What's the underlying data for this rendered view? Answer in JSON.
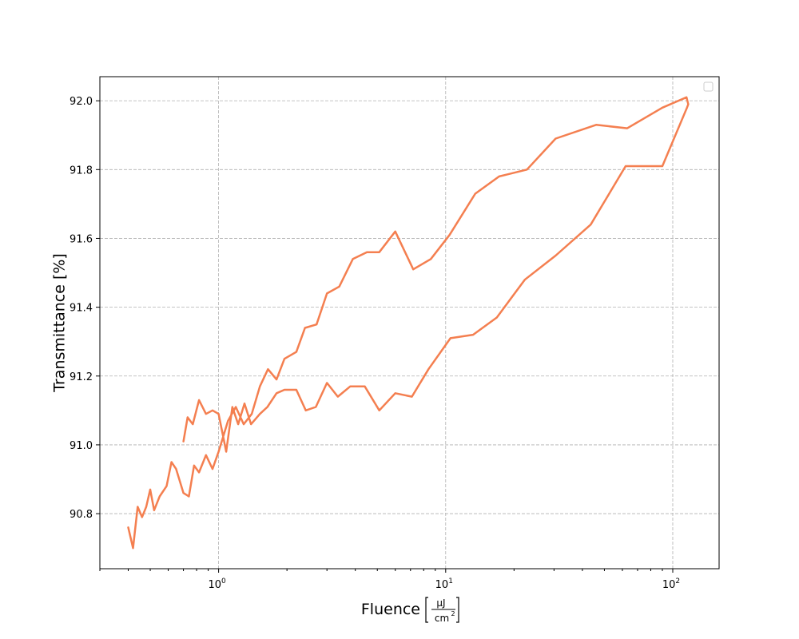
{
  "chart_data": {
    "type": "line",
    "title": "",
    "xlabel": "Fluence",
    "xlabel_unit_numerator": "μJ",
    "xlabel_unit_denominator": "cm",
    "xlabel_unit_exponent": "2",
    "ylabel": "Transmittance [%]",
    "xscale": "log",
    "xlim": [
      0.3,
      160
    ],
    "ylim": [
      90.64,
      92.07
    ],
    "grid": true,
    "legend": "top-right (empty)",
    "line_color": "#f47f50",
    "xticks": [
      {
        "value": 1,
        "base": "10",
        "exp": "0"
      },
      {
        "value": 10,
        "base": "10",
        "exp": "1"
      },
      {
        "value": 100,
        "base": "10",
        "exp": "2"
      }
    ],
    "yticks": [
      {
        "value": 90.8,
        "label": "90.8"
      },
      {
        "value": 91.0,
        "label": "91.0"
      },
      {
        "value": 91.2,
        "label": "91.2"
      },
      {
        "value": 91.4,
        "label": "91.4"
      },
      {
        "value": 91.6,
        "label": "91.6"
      },
      {
        "value": 91.8,
        "label": "91.8"
      },
      {
        "value": 92.0,
        "label": "92.0"
      }
    ],
    "series": [
      {
        "x": [
          0.4,
          0.42,
          0.44,
          0.46,
          0.48,
          0.5,
          0.52,
          0.55,
          0.59,
          0.62,
          0.65,
          0.7,
          0.74,
          0.78,
          0.82,
          0.88,
          0.94,
          1.0,
          1.1,
          1.19,
          1.29,
          1.4,
          1.52,
          1.65,
          1.8,
          1.95,
          2.2,
          2.4,
          2.7,
          3.0,
          3.4,
          3.9,
          4.5,
          5.1,
          6.0,
          7.2,
          8.6,
          10.4,
          13.5,
          17.2,
          22.8,
          30.5,
          46.0,
          63.0,
          90.0,
          115.0,
          117.0,
          115.5,
          90.0,
          62.0,
          43.5,
          30.5,
          22.3,
          16.8,
          13.2,
          10.5,
          8.4,
          7.1,
          6.0,
          5.1,
          4.4,
          3.8,
          3.35,
          3.0,
          2.68,
          2.42,
          2.2,
          1.95,
          1.8,
          1.64,
          1.52,
          1.39,
          1.3,
          1.22,
          1.15,
          1.08,
          1.0,
          0.94,
          0.88,
          0.82,
          0.77,
          0.73,
          0.7
        ],
        "y": [
          90.76,
          90.7,
          90.82,
          90.79,
          90.82,
          90.87,
          90.81,
          90.85,
          90.88,
          90.95,
          90.93,
          90.86,
          90.85,
          90.94,
          90.92,
          90.97,
          90.93,
          90.98,
          91.07,
          91.11,
          91.06,
          91.09,
          91.17,
          91.22,
          91.19,
          91.25,
          91.27,
          91.34,
          91.35,
          91.44,
          91.46,
          91.54,
          91.56,
          91.56,
          91.62,
          91.51,
          91.54,
          91.61,
          91.73,
          91.78,
          91.8,
          91.89,
          91.93,
          91.92,
          91.98,
          92.01,
          91.99,
          91.98,
          91.81,
          91.81,
          91.64,
          91.55,
          91.48,
          91.37,
          91.32,
          91.31,
          91.22,
          91.14,
          91.15,
          91.1,
          91.17,
          91.17,
          91.14,
          91.18,
          91.11,
          91.1,
          91.16,
          91.16,
          91.15,
          91.11,
          91.09,
          91.06,
          91.12,
          91.06,
          91.11,
          90.98,
          91.09,
          91.1,
          91.09,
          91.13,
          91.06,
          91.08,
          91.01
        ]
      }
    ]
  }
}
